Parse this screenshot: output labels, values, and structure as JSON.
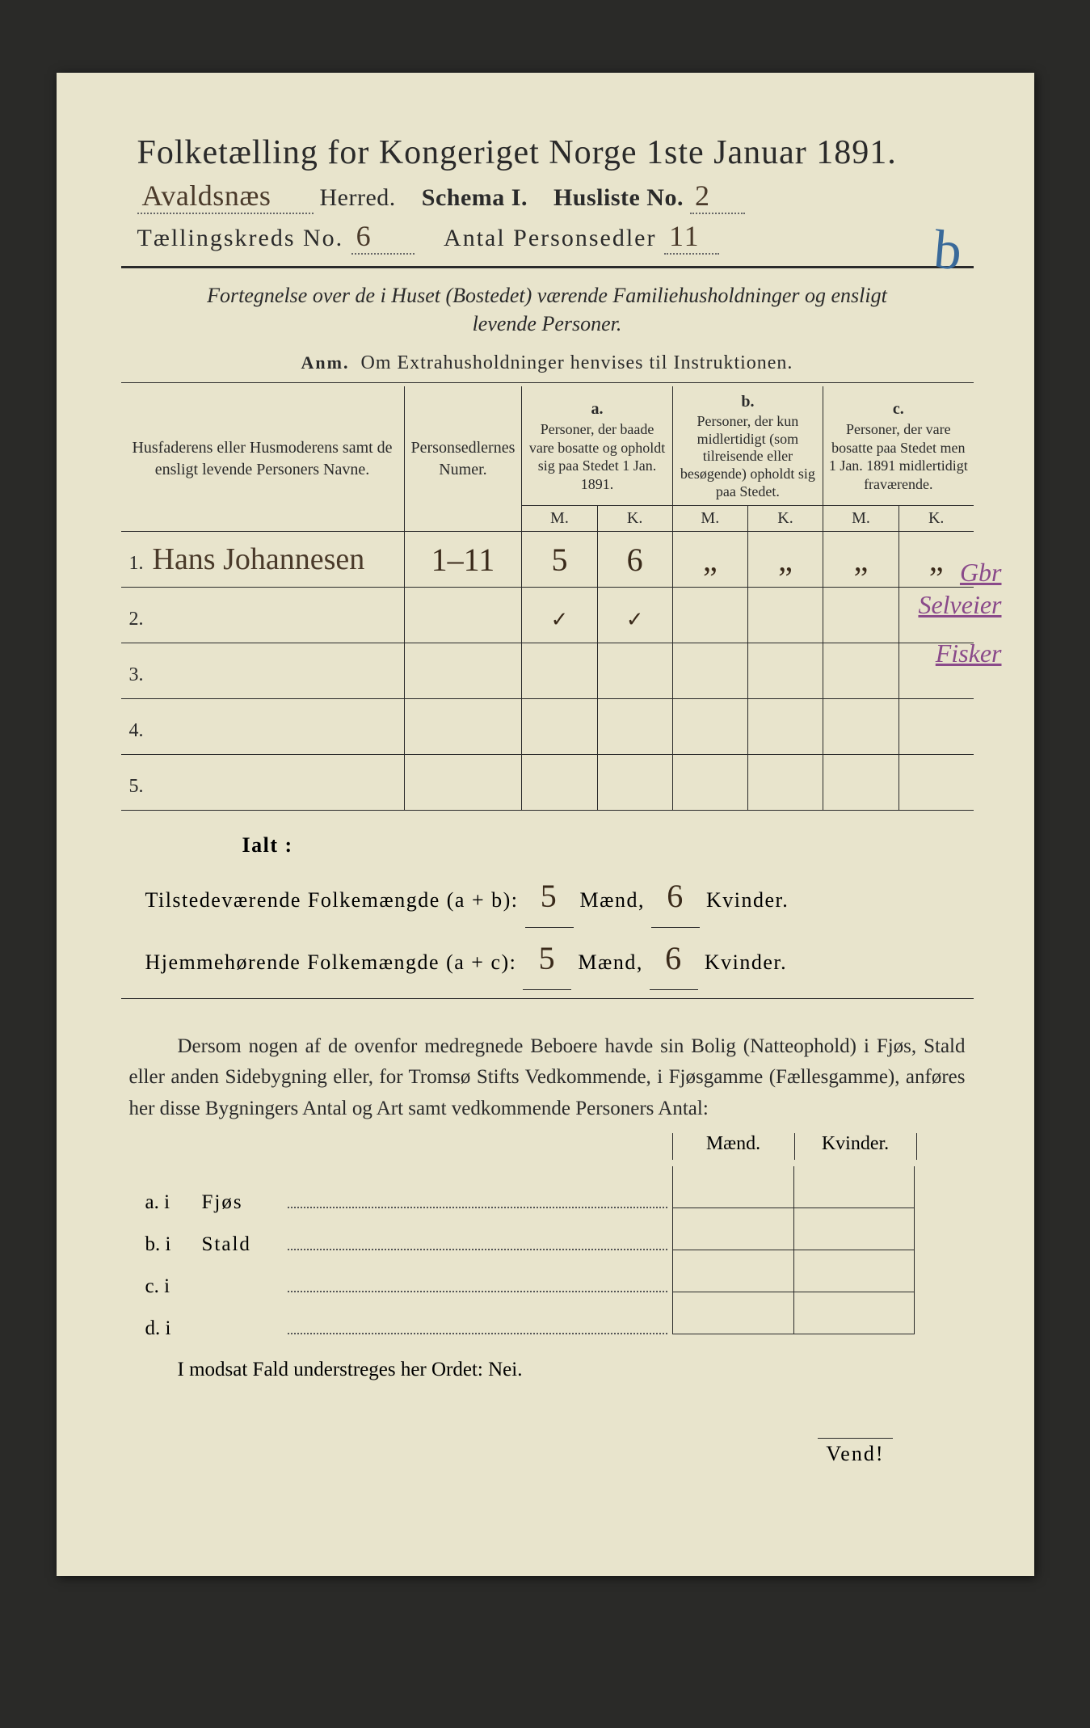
{
  "header": {
    "title": "Folketælling for Kongeriget Norge 1ste Januar 1891.",
    "herred_handwritten": "Avaldsnæs",
    "herred_label": "Herred.",
    "schema_label": "Schema I.",
    "husliste_label": "Husliste No.",
    "husliste_no": "2",
    "tkreds_label": "Tællingskreds No.",
    "tkreds_no": "6",
    "antal_label": "Antal Personsedler",
    "antal_no": "11",
    "big_mark": "b"
  },
  "sub": {
    "line1": "Fortegnelse over de i Huset (Bostedet) værende Familiehusholdninger og ensligt",
    "line2": "levende Personer.",
    "anm_prefix": "Anm.",
    "anm_text": "Om Extrahusholdninger henvises til Instruktionen."
  },
  "table": {
    "head": {
      "col1": "Husfaderens eller Husmoderens samt de ensligt levende Personers Navne.",
      "col2": "Personsedlernes Numer.",
      "a_label": "a.",
      "a_text": "Personer, der baade vare bosatte og opholdt sig paa Stedet 1 Jan. 1891.",
      "b_label": "b.",
      "b_text": "Personer, der kun midlertidigt (som tilreisende eller besøgende) opholdt sig paa Stedet.",
      "c_label": "c.",
      "c_text": "Personer, der vare bosatte paa Stedet men 1 Jan. 1891 midlertidigt fraværende.",
      "m": "M.",
      "k": "K."
    },
    "rows": [
      {
        "n": "1.",
        "name": "Hans Johannesen",
        "num": "1–11",
        "aM": "5",
        "aK": "6",
        "bM": "„",
        "bK": "„",
        "cM": "„",
        "cK": "„"
      },
      {
        "n": "2.",
        "name": "",
        "num": "",
        "aM": "✓",
        "aK": "✓",
        "bM": "",
        "bK": "",
        "cM": "",
        "cK": ""
      },
      {
        "n": "3.",
        "name": "",
        "num": "",
        "aM": "",
        "aK": "",
        "bM": "",
        "bK": "",
        "cM": "",
        "cK": ""
      },
      {
        "n": "4.",
        "name": "",
        "num": "",
        "aM": "",
        "aK": "",
        "bM": "",
        "bK": "",
        "cM": "",
        "cK": ""
      },
      {
        "n": "5.",
        "name": "",
        "num": "",
        "aM": "",
        "aK": "",
        "bM": "",
        "bK": "",
        "cM": "",
        "cK": ""
      }
    ]
  },
  "margin_notes": [
    "Gbr",
    "Selveier",
    "Fisker"
  ],
  "ialt": {
    "heading": "Ialt :",
    "line1_pre": "Tilstedeværende Folkemængde (a + b):",
    "line2_pre": "Hjemmehørende Folkemængde (a + c):",
    "maend": "Mænd,",
    "kvinder": "Kvinder.",
    "v1m": "5",
    "v1k": "6",
    "v2m": "5",
    "v2k": "6"
  },
  "para": "Dersom nogen af de ovenfor medregnede Beboere havde sin Bolig (Natteophold) i Fjøs, Stald eller anden Sidebygning eller, for Tromsø Stifts Vedkommende, i Fjøsgamme (Fællesgamme), anføres her disse Bygningers Antal og Art samt vedkommende Personers Antal:",
  "side": {
    "maend": "Mænd.",
    "kvinder": "Kvinder.",
    "rows": [
      {
        "l": "a.  i",
        "t": "Fjøs"
      },
      {
        "l": "b.  i",
        "t": "Stald"
      },
      {
        "l": "c.  i",
        "t": ""
      },
      {
        "l": "d.  i",
        "t": ""
      }
    ]
  },
  "nei": "I modsat Fald understreges her Ordet: Nei.",
  "vend": "Vend!"
}
